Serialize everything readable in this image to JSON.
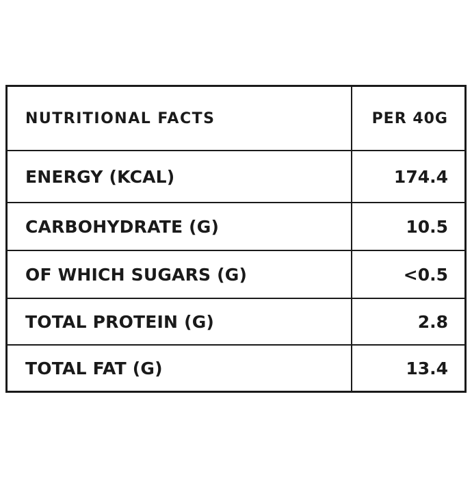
{
  "table": {
    "header": {
      "label": "NUTRITIONAL FACTS",
      "value": "PER 40G"
    },
    "rows": [
      {
        "label": "ENERGY (KCAL)",
        "value": "174.4"
      },
      {
        "label": "CARBOHYDRATE (G)",
        "value": "10.5"
      },
      {
        "label": "OF WHICH SUGARS (G)",
        "value": "<0.5"
      },
      {
        "label": "TOTAL PROTEIN (G)",
        "value": "2.8"
      },
      {
        "label": "TOTAL FAT (G)",
        "value": "13.4"
      }
    ]
  }
}
